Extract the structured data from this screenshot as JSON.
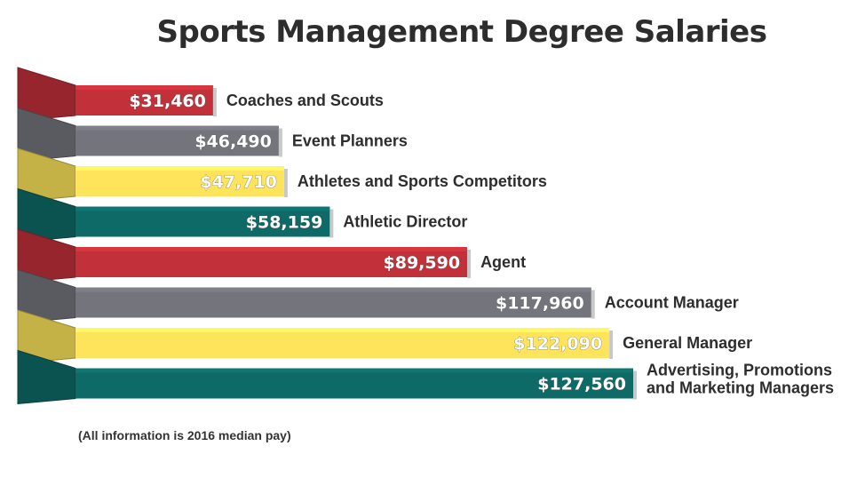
{
  "title": "Sports Management Degree Salaries",
  "footnote": "(All information is 2016 median pay)",
  "colors": {
    "red": "#c2303a",
    "gray": "#74747c",
    "yellow": "#fde45a",
    "teal": "#0d6a66",
    "text": "#2d2d2d"
  },
  "chart_data": {
    "type": "bar",
    "orientation": "horizontal",
    "title": "Sports Management Degree Salaries",
    "categories": [
      "Coaches and Scouts",
      "Event Planners",
      "Athletes and Sports Competitors",
      "Athletic Director",
      "Agent",
      "Account Manager",
      "General Manager",
      "Advertising, Promotions and Marketing Managers"
    ],
    "values": [
      31460,
      46490,
      47710,
      58159,
      89590,
      117960,
      122090,
      127560
    ],
    "value_labels": [
      "$31,460",
      "$46,490",
      "$47,710",
      "$58,159",
      "$89,590",
      "$117,960",
      "$122,090",
      "$127,560"
    ],
    "bar_colors": [
      "red",
      "gray",
      "yellow",
      "teal",
      "red",
      "gray",
      "yellow",
      "teal"
    ],
    "xlim": [
      0,
      127560
    ],
    "grid": false,
    "legend": "none",
    "annotation": "(All information is 2016 median pay)"
  }
}
